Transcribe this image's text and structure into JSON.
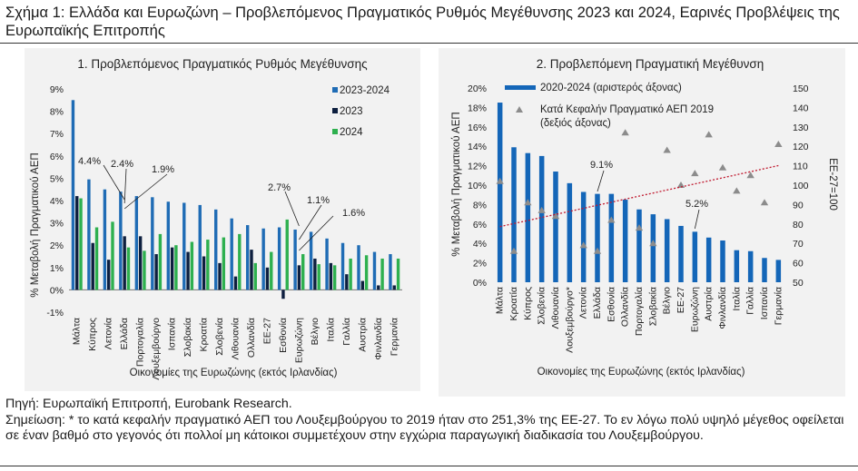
{
  "figure": {
    "title": "Σχήμα 1: Ελλάδα και Ευρωζώνη – Προβλεπόμενος Πραγματικός Ρυθμός Μεγέθυνσης 2023 και 2024, Εαρινές Προβλέψεις της Ευρωπαϊκής Επιτροπής",
    "source": "Πηγή: Ευρωπαϊκή Επιτροπή, Eurobank Research.",
    "note": "Σημείωση: * το κατά κεφαλήν πραγματικό ΑΕΠ του Λουξεμβούργου το 2019 ήταν στο 251,3% της ΕΕ-27. Το εν λόγω πολύ υψηλό μέγεθος οφείλεται σε έναν βαθμό στο γεγονός ότι πολλοί μη κάτοικοι συμμετέχουν στην εγχώρια παραγωγική διαδικασία του Λουξεμβούργου."
  },
  "colors": {
    "series_2023_2024": "#1f6cb5",
    "series_2023": "#0d1f3f",
    "series_2024": "#2eb04f",
    "bars_right": "#1466b8",
    "triangles": "#8c8c8c",
    "trend": "#c0182e"
  },
  "chart_data": [
    {
      "type": "bar",
      "title": "1. Προβλεπόμενος Πραγματικός Ρυθμός Μεγέθυνσης",
      "xlabel": "Οικονομίες της Ευρωζώνης (εκτός Ιρλανδίας)",
      "ylabel": "% Μεταβολή Πραγματικού ΑΕΠ",
      "ylim": [
        -1,
        9
      ],
      "yticks": [
        "-1%",
        "0%",
        "1%",
        "2%",
        "3%",
        "4%",
        "5%",
        "6%",
        "7%",
        "8%",
        "9%"
      ],
      "legend_position": "top-right",
      "grid": false,
      "categories": [
        "Μάλτα",
        "Κύπρος",
        "Λετονία",
        "Ελλάδα",
        "Πορτογαλία",
        "Λουξεμβούργο",
        "Ισπανία",
        "Σλοβακία",
        "Κροατία",
        "Σλοβενία",
        "Λιθουανία",
        "Ολλανδία",
        "ΕΕ-27",
        "Εσθονία",
        "Ευρωζώνη",
        "Βέλγιο",
        "Ιταλία",
        "Γαλλία",
        "Αυστρία",
        "Φινλανδία",
        "Γερμανία"
      ],
      "series": [
        {
          "name": "2023-2024",
          "values": [
            8.5,
            4.95,
            4.5,
            4.4,
            4.2,
            4.15,
            3.95,
            3.9,
            3.8,
            3.6,
            3.2,
            2.9,
            2.75,
            2.8,
            2.7,
            2.6,
            2.3,
            2.1,
            2.0,
            1.7,
            1.6
          ]
        },
        {
          "name": "2023",
          "values": [
            4.2,
            2.1,
            1.35,
            2.4,
            2.4,
            1.6,
            1.9,
            1.7,
            1.5,
            1.2,
            0.6,
            1.8,
            1.0,
            -0.4,
            1.1,
            1.4,
            1.2,
            0.7,
            0.4,
            0.2,
            0.2
          ]
        },
        {
          "name": "2024",
          "values": [
            4.1,
            2.8,
            3.05,
            1.9,
            1.75,
            2.5,
            2.0,
            2.15,
            2.25,
            2.35,
            2.5,
            1.2,
            1.7,
            3.15,
            1.6,
            1.15,
            1.1,
            1.4,
            1.55,
            1.4,
            1.4
          ]
        }
      ],
      "annotations": [
        "4.4%",
        "2.4%",
        "1.9%",
        "2.7%",
        "1.1%",
        "1.6%"
      ]
    },
    {
      "type": "bar",
      "title": "2. Προβλεπόμενη Πραγματική Μεγέθυνση",
      "xlabel": "Οικονομίες της Ευρωζώνης (εκτός Ιρλανδίας)",
      "ylabel": "% Μεταβολή Πραγματικού ΑΕΠ",
      "ylabel_right": "ΕΕ-27=100",
      "ylim": [
        0,
        20
      ],
      "ylim_right": [
        50,
        150
      ],
      "yticks": [
        "0%",
        "2%",
        "4%",
        "6%",
        "8%",
        "10%",
        "12%",
        "14%",
        "16%",
        "18%",
        "20%"
      ],
      "yticks_right": [
        "50",
        "60",
        "70",
        "80",
        "90",
        "100",
        "110",
        "120",
        "130",
        "140",
        "150"
      ],
      "legend_position": "top",
      "grid": false,
      "categories": [
        "Μάλτα",
        "Κροατία",
        "Κύπρος",
        "Σλοβενία",
        "Λιθουανία",
        "Λουξεμβούργο*",
        "Λετονία",
        "Ελλάδα",
        "Εσθονία",
        "Ολλανδία",
        "Πορτογαλία",
        "Σλοβακία",
        "Βέλγιο",
        "ΕΕ-27",
        "Ευρωζώνη",
        "Αυστρία",
        "Φινλανδία",
        "Ιταλία",
        "Γαλλία",
        "Ισπανία",
        "Γερμανία"
      ],
      "series": [
        {
          "name": "2020-2024 (αριστερός άξονας)",
          "values": [
            18.5,
            13.9,
            13.3,
            13.0,
            11.4,
            10.2,
            9.3,
            9.1,
            9.1,
            8.5,
            7.5,
            7.0,
            6.5,
            5.8,
            5.2,
            4.6,
            4.3,
            3.3,
            3.2,
            2.5,
            2.3
          ]
        },
        {
          "name": "Κατά Κεφαλήν Πραγματικό ΑΕΠ 2019 (δεξιός άξονας)",
          "values": [
            102,
            66,
            91,
            87,
            84,
            null,
            69,
            66,
            82,
            127,
            78,
            70,
            118,
            100,
            106,
            126,
            109,
            97,
            105,
            91,
            121
          ]
        }
      ],
      "trendline": true,
      "annotations": [
        "9.1%",
        "5.2%"
      ]
    }
  ]
}
